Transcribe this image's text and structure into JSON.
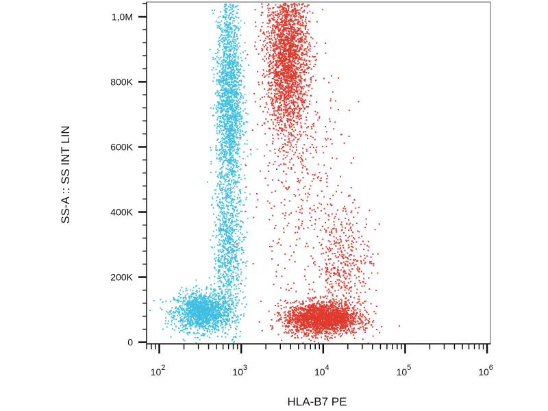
{
  "chart_data": {
    "type": "scatter",
    "title": "",
    "xlabel": "HLA-B7 PE",
    "ylabel": "SS-A :: SS INT LIN",
    "xscale": "log",
    "xlim": [
      70,
      1100000
    ],
    "ylim": [
      -5000,
      1045000
    ],
    "x_ticks": [
      {
        "value": 100,
        "base": "10",
        "exp": "2"
      },
      {
        "value": 1000,
        "base": "10",
        "exp": "3"
      },
      {
        "value": 10000,
        "base": "10",
        "exp": "4"
      },
      {
        "value": 100000,
        "base": "10",
        "exp": "5"
      },
      {
        "value": 1000000,
        "base": "10",
        "exp": "6"
      }
    ],
    "y_ticks": [
      {
        "value": 0,
        "label": "0"
      },
      {
        "value": 200000,
        "label": "200K"
      },
      {
        "value": 400000,
        "label": "400K"
      },
      {
        "value": 600000,
        "label": "600K"
      },
      {
        "value": 800000,
        "label": "800K"
      },
      {
        "value": 1000000,
        "label": "1,0M"
      }
    ],
    "grid": false,
    "legend": "none",
    "series": [
      {
        "color": "#3fbfe2",
        "clusters": [
          {
            "x_center": 330,
            "x_spread_log": 0.17,
            "y_center": 95000,
            "y_spread": 30000,
            "n": 1500
          },
          {
            "x_center": 700,
            "x_spread_log": 0.08,
            "y_center": 750000,
            "y_spread": 170000,
            "n": 1900
          },
          {
            "x_center": 680,
            "x_spread_log": 0.09,
            "y_center": 280000,
            "y_spread": 120000,
            "n": 800
          }
        ]
      },
      {
        "color": "#e03a2f",
        "clusters": [
          {
            "x_center": 3600,
            "x_spread_log": 0.13,
            "y_center": 880000,
            "y_spread": 120000,
            "n": 2400
          },
          {
            "x_center": 9500,
            "x_spread_log": 0.22,
            "y_center": 75000,
            "y_spread": 25000,
            "n": 2200
          },
          {
            "x_center": 18000,
            "x_spread_log": 0.17,
            "y_center": 240000,
            "y_spread": 90000,
            "n": 450
          },
          {
            "x_center": 5000,
            "x_spread_log": 0.3,
            "y_center": 500000,
            "y_spread": 180000,
            "n": 400
          }
        ]
      }
    ]
  }
}
